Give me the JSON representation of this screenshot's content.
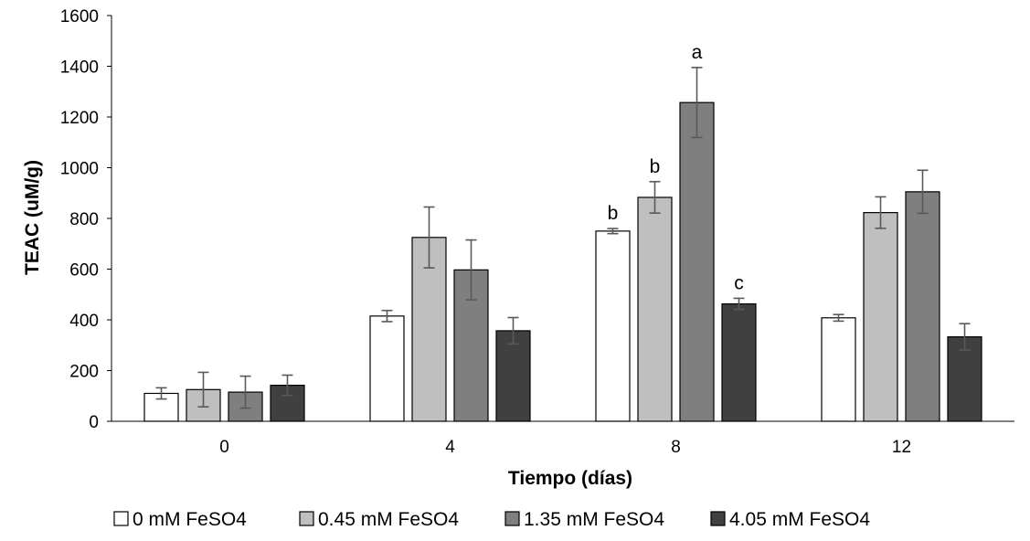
{
  "chart_data": {
    "type": "bar",
    "title": "",
    "xlabel": "Tiempo (días)",
    "ylabel": "TEAC (uM/g)",
    "categories": [
      "0",
      "4",
      "8",
      "12"
    ],
    "ylim": [
      0,
      1600
    ],
    "yticks": [
      0,
      200,
      400,
      600,
      800,
      1000,
      1200,
      1400,
      1600
    ],
    "grid": false,
    "legend_position": "bottom",
    "series": [
      {
        "name": "0 mM FeSO4",
        "color": "#ffffff",
        "values": [
          110,
          415,
          750,
          408
        ],
        "errors": [
          22,
          22,
          10,
          13
        ],
        "labels": [
          "",
          "",
          "b",
          ""
        ]
      },
      {
        "name": "0.45 mM FeSO4",
        "color": "#bfbfbf",
        "values": [
          125,
          725,
          883,
          823
        ],
        "errors": [
          68,
          120,
          62,
          62
        ],
        "labels": [
          "",
          "",
          "b",
          ""
        ]
      },
      {
        "name": "1.35 mM FeSO4",
        "color": "#7f7f7f",
        "values": [
          115,
          597,
          1257,
          905
        ],
        "errors": [
          63,
          118,
          138,
          85
        ],
        "labels": [
          "",
          "",
          "a",
          ""
        ]
      },
      {
        "name": "4.05 mM FeSO4",
        "color": "#404040",
        "values": [
          142,
          357,
          463,
          333
        ],
        "errors": [
          40,
          52,
          22,
          52
        ],
        "labels": [
          "",
          "",
          "c",
          ""
        ]
      }
    ]
  }
}
